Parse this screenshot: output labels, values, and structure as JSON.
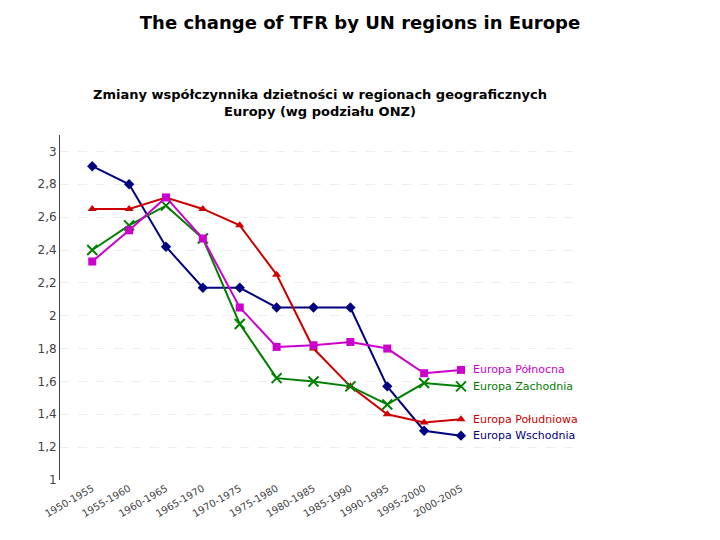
{
  "chart_data": {
    "type": "line",
    "title": "The change of TFR by UN regions in Europe",
    "subtitle": "Zmiany współczynnika dzietności w regionach geograficznych\nEuropy (wg podziału ONZ)",
    "categories": [
      "1950-1955",
      "1955-1960",
      "1960-1965",
      "1965-1970",
      "1970-1975",
      "1975-1980",
      "1980-1985",
      "1985-1990",
      "1990-1995",
      "1995-2000",
      "2000-2005"
    ],
    "series": [
      {
        "name": "Europa Wschodnia",
        "color": "#000080",
        "marker": "diamond",
        "values": [
          2.91,
          2.8,
          2.42,
          2.17,
          2.17,
          2.05,
          2.05,
          2.05,
          1.57,
          1.3,
          1.27
        ]
      },
      {
        "name": "Europa Południowa",
        "color": "#cc0000",
        "marker": "triangle-up",
        "values": [
          2.65,
          2.65,
          2.72,
          2.65,
          2.55,
          2.25,
          1.8,
          1.57,
          1.4,
          1.35,
          1.37
        ]
      },
      {
        "name": "Europa Zachodnia",
        "color": "#008000",
        "marker": "x",
        "values": [
          2.4,
          2.55,
          2.67,
          2.47,
          1.95,
          1.62,
          1.6,
          1.57,
          1.46,
          1.59,
          1.57
        ]
      },
      {
        "name": "Europa Północna",
        "color": "#cc00cc",
        "marker": "square",
        "values": [
          2.33,
          2.52,
          2.72,
          2.47,
          2.05,
          1.81,
          1.82,
          1.84,
          1.8,
          1.65,
          1.67
        ]
      }
    ],
    "ylim": [
      1.0,
      3.1
    ],
    "yticks": [
      1,
      {
        "value": 1.2,
        "label": "1,2"
      },
      {
        "value": 1.4,
        "label": "1,4"
      },
      {
        "value": 1.6,
        "label": "1,6"
      },
      {
        "value": 1.8,
        "label": "1,8"
      },
      2,
      {
        "value": 2.2,
        "label": "2,2"
      },
      {
        "value": 2.4,
        "label": "2,4"
      },
      {
        "value": 2.6,
        "label": "2,6"
      },
      {
        "value": 2.8,
        "label": "2,8"
      },
      3
    ],
    "grid": true
  }
}
